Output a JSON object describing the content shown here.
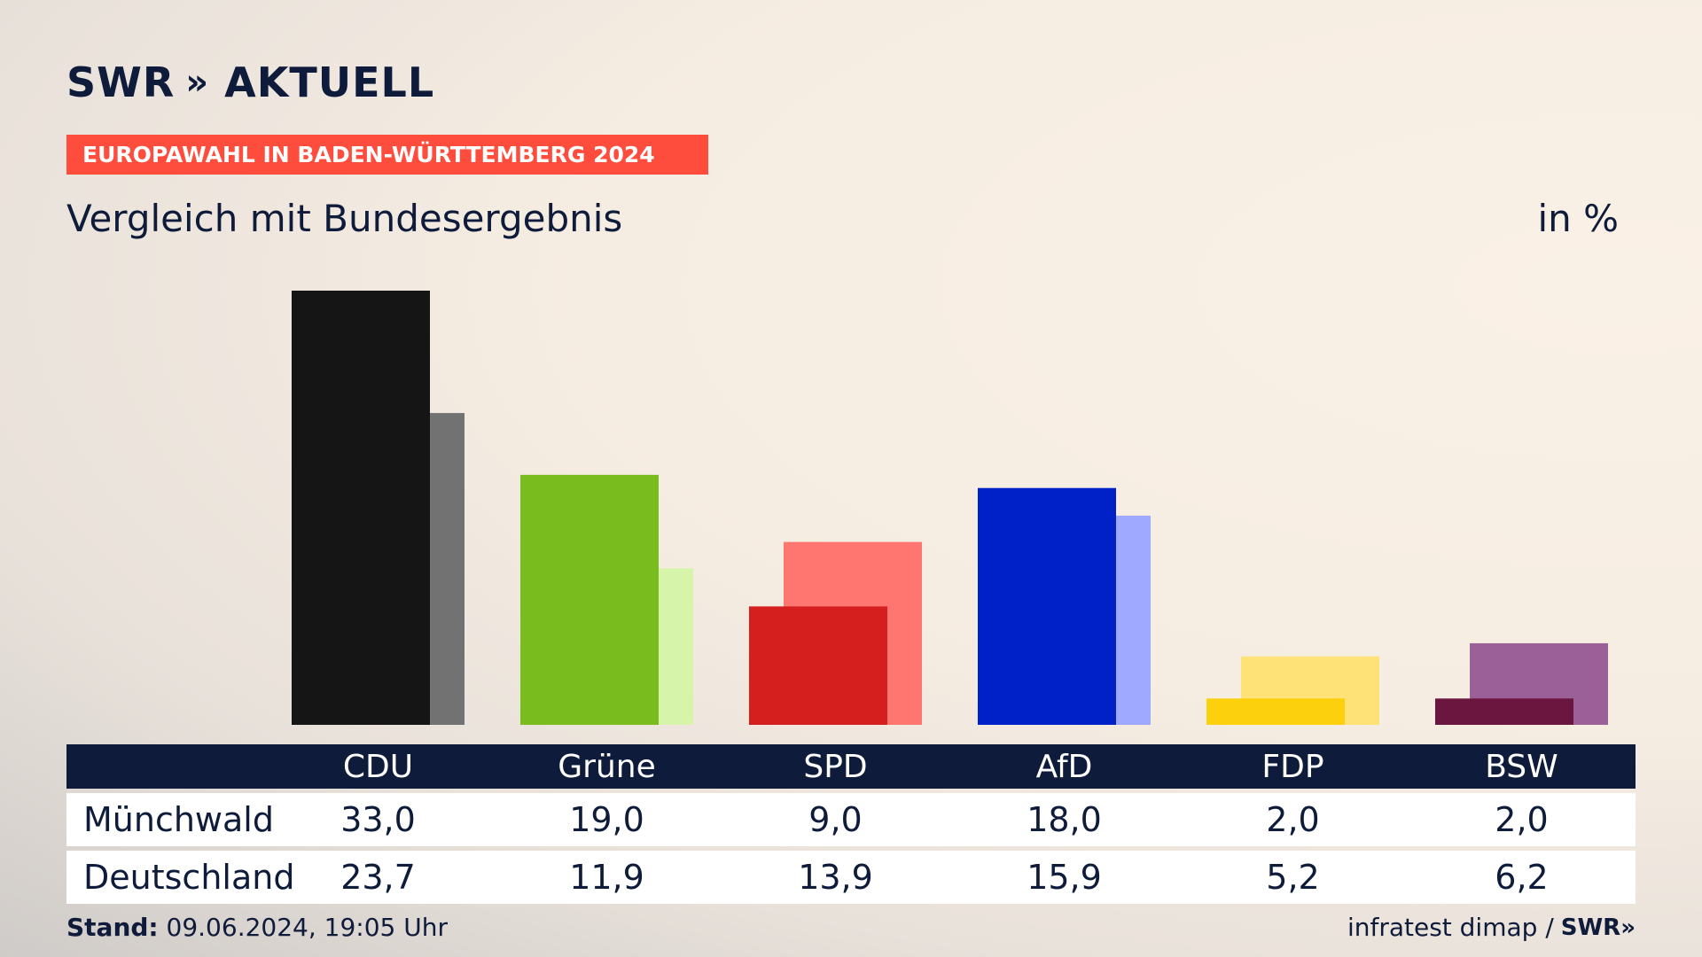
{
  "header": {
    "logo_text": "SWR",
    "logo_chevrons": "»",
    "logo_suffix": "AKTUELL",
    "banner": "EUROPAWAHL IN BADEN-WÜRTTEMBERG 2024",
    "subtitle": "Vergleich mit Bundesergebnis",
    "unit": "in %"
  },
  "chart_data": {
    "type": "bar",
    "categories": [
      "CDU",
      "Grüne",
      "SPD",
      "AfD",
      "FDP",
      "BSW"
    ],
    "series": [
      {
        "name": "Münchwald",
        "values": [
          33.0,
          19.0,
          9.0,
          18.0,
          2.0,
          2.0
        ],
        "colors": [
          "#151515",
          "#79bc1e",
          "#d51f1f",
          "#0020c8",
          "#fcd00c",
          "#6b163f"
        ]
      },
      {
        "name": "Deutschland",
        "values": [
          23.7,
          11.9,
          13.9,
          15.9,
          5.2,
          6.2
        ],
        "colors": [
          "#737272",
          "#d7f5aa",
          "#ff7570",
          "#9ea9ff",
          "#fee277",
          "#9b6097"
        ]
      }
    ],
    "ylim": [
      0,
      33
    ]
  },
  "table": {
    "headers": [
      "CDU",
      "Grüne",
      "SPD",
      "AfD",
      "FDP",
      "BSW"
    ],
    "rows": [
      {
        "label": "Münchwald",
        "values": [
          "33,0",
          "19,0",
          "9,0",
          "18,0",
          "2,0",
          "2,0"
        ]
      },
      {
        "label": "Deutschland",
        "values": [
          "23,7",
          "11,9",
          "13,9",
          "15,9",
          "5,2",
          "6,2"
        ]
      }
    ]
  },
  "footer": {
    "stand_label": "Stand:",
    "stand_value": "09.06.2024, 19:05 Uhr",
    "source": "infratest dimap /",
    "source_logo": "SWR»"
  }
}
